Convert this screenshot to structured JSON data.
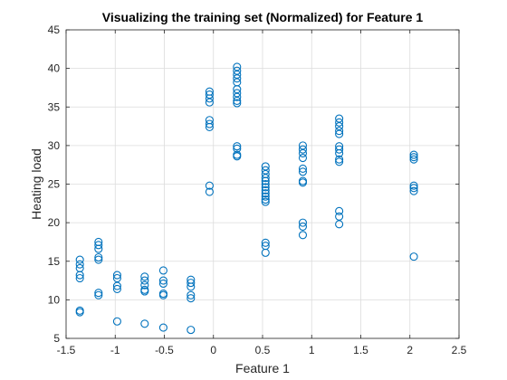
{
  "chart_data": {
    "type": "scatter",
    "title": "Visualizing the training set (Normalized) for Feature 1",
    "xlabel": "Feature 1",
    "ylabel": "Heating load",
    "xlim": [
      -1.5,
      2.5
    ],
    "ylim": [
      5,
      45
    ],
    "xticks": [
      -1.5,
      -1,
      -0.5,
      0,
      0.5,
      1,
      1.5,
      2,
      2.5
    ],
    "xtick_labels": [
      "-1.5",
      "-1",
      "-0.5",
      "0",
      "0.5",
      "1",
      "1.5",
      "2",
      "2.5"
    ],
    "yticks": [
      5,
      10,
      15,
      20,
      25,
      30,
      35,
      40,
      45
    ],
    "ytick_labels": [
      "5",
      "10",
      "15",
      "20",
      "25",
      "30",
      "35",
      "40",
      "45"
    ],
    "grid": true,
    "marker": "open-circle",
    "marker_color": "#0072BD",
    "series": [
      {
        "points": [
          {
            "x": -1.36,
            "y": 15.2
          },
          {
            "x": -1.36,
            "y": 14.6
          },
          {
            "x": -1.36,
            "y": 14.1
          },
          {
            "x": -1.36,
            "y": 13.2
          },
          {
            "x": -1.36,
            "y": 12.8
          },
          {
            "x": -1.36,
            "y": 8.6
          },
          {
            "x": -1.36,
            "y": 8.4
          },
          {
            "x": -1.17,
            "y": 17.5
          },
          {
            "x": -1.17,
            "y": 17.1
          },
          {
            "x": -1.17,
            "y": 16.6
          },
          {
            "x": -1.17,
            "y": 15.5
          },
          {
            "x": -1.17,
            "y": 15.2
          },
          {
            "x": -1.17,
            "y": 10.9
          },
          {
            "x": -1.17,
            "y": 10.6
          },
          {
            "x": -0.98,
            "y": 13.2
          },
          {
            "x": -0.98,
            "y": 12.8
          },
          {
            "x": -0.98,
            "y": 11.8
          },
          {
            "x": -0.98,
            "y": 11.4
          },
          {
            "x": -0.98,
            "y": 7.2
          },
          {
            "x": -0.7,
            "y": 13.0
          },
          {
            "x": -0.7,
            "y": 12.5
          },
          {
            "x": -0.7,
            "y": 11.9
          },
          {
            "x": -0.7,
            "y": 11.3
          },
          {
            "x": -0.7,
            "y": 11.1
          },
          {
            "x": -0.7,
            "y": 6.9
          },
          {
            "x": -0.51,
            "y": 13.8
          },
          {
            "x": -0.51,
            "y": 12.5
          },
          {
            "x": -0.51,
            "y": 12.1
          },
          {
            "x": -0.51,
            "y": 10.8
          },
          {
            "x": -0.51,
            "y": 10.6
          },
          {
            "x": -0.51,
            "y": 6.4
          },
          {
            "x": -0.23,
            "y": 12.6
          },
          {
            "x": -0.23,
            "y": 12.2
          },
          {
            "x": -0.23,
            "y": 11.7
          },
          {
            "x": -0.23,
            "y": 10.6
          },
          {
            "x": -0.23,
            "y": 10.2
          },
          {
            "x": -0.23,
            "y": 6.1
          },
          {
            "x": -0.04,
            "y": 37.0
          },
          {
            "x": -0.04,
            "y": 36.6
          },
          {
            "x": -0.04,
            "y": 36.1
          },
          {
            "x": -0.04,
            "y": 35.6
          },
          {
            "x": -0.04,
            "y": 33.3
          },
          {
            "x": -0.04,
            "y": 32.8
          },
          {
            "x": -0.04,
            "y": 32.4
          },
          {
            "x": -0.04,
            "y": 24.8
          },
          {
            "x": -0.04,
            "y": 24.0
          },
          {
            "x": 0.24,
            "y": 40.2
          },
          {
            "x": 0.24,
            "y": 39.7
          },
          {
            "x": 0.24,
            "y": 39.2
          },
          {
            "x": 0.24,
            "y": 38.7
          },
          {
            "x": 0.24,
            "y": 38.2
          },
          {
            "x": 0.24,
            "y": 37.3
          },
          {
            "x": 0.24,
            "y": 36.8
          },
          {
            "x": 0.24,
            "y": 36.3
          },
          {
            "x": 0.24,
            "y": 35.8
          },
          {
            "x": 0.24,
            "y": 35.5
          },
          {
            "x": 0.24,
            "y": 29.9
          },
          {
            "x": 0.24,
            "y": 29.6
          },
          {
            "x": 0.24,
            "y": 28.8
          },
          {
            "x": 0.24,
            "y": 28.6
          },
          {
            "x": 0.53,
            "y": 27.3
          },
          {
            "x": 0.53,
            "y": 26.8
          },
          {
            "x": 0.53,
            "y": 26.3
          },
          {
            "x": 0.53,
            "y": 25.8
          },
          {
            "x": 0.53,
            "y": 25.4
          },
          {
            "x": 0.53,
            "y": 25.0
          },
          {
            "x": 0.53,
            "y": 24.6
          },
          {
            "x": 0.53,
            "y": 24.2
          },
          {
            "x": 0.53,
            "y": 23.8
          },
          {
            "x": 0.53,
            "y": 23.4
          },
          {
            "x": 0.53,
            "y": 23.0
          },
          {
            "x": 0.53,
            "y": 22.7
          },
          {
            "x": 0.53,
            "y": 17.4
          },
          {
            "x": 0.53,
            "y": 17.0
          },
          {
            "x": 0.53,
            "y": 16.1
          },
          {
            "x": 0.91,
            "y": 30.0
          },
          {
            "x": 0.91,
            "y": 29.5
          },
          {
            "x": 0.91,
            "y": 29.0
          },
          {
            "x": 0.91,
            "y": 28.4
          },
          {
            "x": 0.91,
            "y": 27.0
          },
          {
            "x": 0.91,
            "y": 26.6
          },
          {
            "x": 0.91,
            "y": 25.4
          },
          {
            "x": 0.91,
            "y": 25.2
          },
          {
            "x": 0.91,
            "y": 20.0
          },
          {
            "x": 0.91,
            "y": 19.5
          },
          {
            "x": 0.91,
            "y": 18.4
          },
          {
            "x": 1.28,
            "y": 33.5
          },
          {
            "x": 1.28,
            "y": 33.0
          },
          {
            "x": 1.28,
            "y": 32.5
          },
          {
            "x": 1.28,
            "y": 31.9
          },
          {
            "x": 1.28,
            "y": 31.5
          },
          {
            "x": 1.28,
            "y": 29.9
          },
          {
            "x": 1.28,
            "y": 29.5
          },
          {
            "x": 1.28,
            "y": 29.0
          },
          {
            "x": 1.28,
            "y": 28.2
          },
          {
            "x": 1.28,
            "y": 27.9
          },
          {
            "x": 1.28,
            "y": 21.5
          },
          {
            "x": 1.28,
            "y": 20.8
          },
          {
            "x": 1.28,
            "y": 19.8
          },
          {
            "x": 2.04,
            "y": 28.8
          },
          {
            "x": 2.04,
            "y": 28.5
          },
          {
            "x": 2.04,
            "y": 28.2
          },
          {
            "x": 2.04,
            "y": 24.8
          },
          {
            "x": 2.04,
            "y": 24.5
          },
          {
            "x": 2.04,
            "y": 24.1
          },
          {
            "x": 2.04,
            "y": 15.6
          }
        ]
      }
    ]
  }
}
